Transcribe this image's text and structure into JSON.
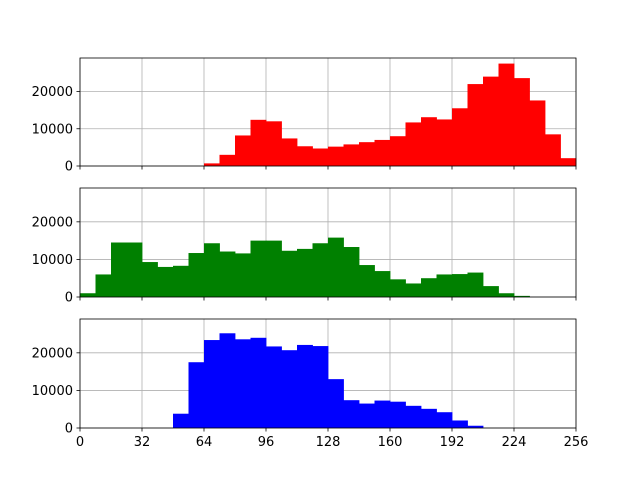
{
  "chart_data": {
    "type": "bar",
    "layout": "3 stacked histograms sharing x-axis",
    "grid": true,
    "x_range": [
      0,
      256
    ],
    "bin_width": 8,
    "x_ticks": [
      "0",
      "32",
      "64",
      "96",
      "128",
      "160",
      "192",
      "224",
      "256"
    ],
    "y_range": [
      0,
      29000
    ],
    "y_ticks": [
      "0",
      "10000",
      "20000"
    ],
    "bin_starts": [
      0,
      8,
      16,
      24,
      32,
      40,
      48,
      56,
      64,
      72,
      80,
      88,
      96,
      104,
      112,
      120,
      128,
      136,
      144,
      152,
      160,
      168,
      176,
      184,
      192,
      200,
      208,
      216,
      224,
      232,
      240,
      248
    ],
    "series": [
      {
        "color": "#ff0000",
        "values": [
          0,
          0,
          0,
          0,
          0,
          0,
          0,
          0,
          700,
          3000,
          8200,
          12400,
          12000,
          7400,
          5300,
          4700,
          5200,
          5800,
          6400,
          7000,
          8000,
          11700,
          13100,
          12500,
          15500,
          22000,
          24000,
          27500,
          23600,
          17600,
          8500,
          2100
        ]
      },
      {
        "color": "#008000",
        "values": [
          1000,
          6000,
          14500,
          14500,
          9300,
          8000,
          8300,
          11700,
          14300,
          12100,
          11600,
          15000,
          15000,
          12300,
          12800,
          14300,
          15800,
          13300,
          8500,
          6900,
          4700,
          3600,
          5000,
          6000,
          6100,
          6500,
          2900,
          1000,
          300,
          0,
          0,
          0
        ]
      },
      {
        "color": "#0000ff",
        "values": [
          0,
          0,
          0,
          0,
          0,
          0,
          3800,
          17500,
          23400,
          25200,
          23600,
          24000,
          21700,
          20700,
          22100,
          21800,
          13000,
          7400,
          6500,
          7300,
          7000,
          5900,
          5100,
          4200,
          2000,
          600,
          0,
          0,
          0,
          0,
          0,
          0
        ]
      }
    ]
  }
}
